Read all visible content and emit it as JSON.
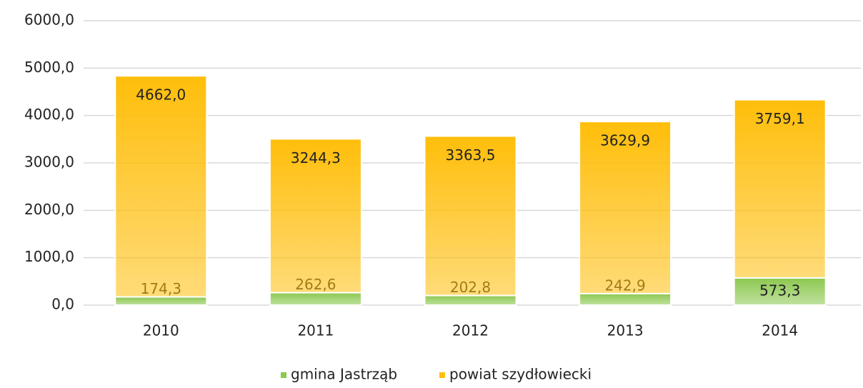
{
  "chart_data": {
    "type": "stacked_bar",
    "categories": [
      "2010",
      "2011",
      "2012",
      "2013",
      "2014"
    ],
    "series": [
      {
        "name": "gmina Jastrząb",
        "color": "#8cc850",
        "values": [
          174.3,
          262.6,
          202.8,
          242.9,
          573.3
        ],
        "value_labels": [
          "174,3",
          "262,6",
          "202,8",
          "242,9",
          "573,3"
        ]
      },
      {
        "name": "powiat szydłowiecki",
        "color": "#ffbe0a",
        "values": [
          4662.0,
          3244.3,
          3363.5,
          3629.9,
          3759.1
        ],
        "value_labels": [
          "4662,0",
          "3244,3",
          "3363,5",
          "3629,9",
          "3759,1"
        ]
      }
    ],
    "ylim": [
      0,
      6000
    ],
    "yticks": [
      {
        "value": 0,
        "label": "0,0"
      },
      {
        "value": 1000,
        "label": "1000,0"
      },
      {
        "value": 2000,
        "label": "2000,0"
      },
      {
        "value": 3000,
        "label": "3000,0"
      },
      {
        "value": 4000,
        "label": "4000,0"
      },
      {
        "value": 5000,
        "label": "5000,0"
      },
      {
        "value": 6000,
        "label": "6000,0"
      }
    ],
    "grid": true,
    "legend": "bottom"
  }
}
